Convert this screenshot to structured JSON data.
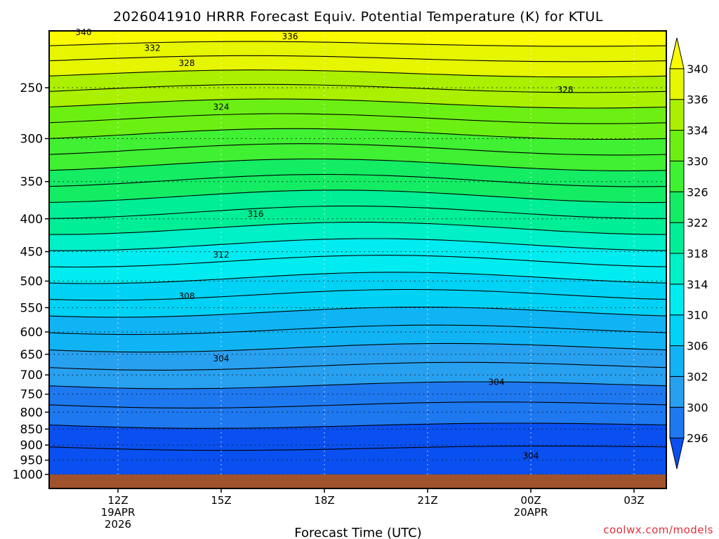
{
  "chart_data": {
    "type": "heatmap",
    "title": "2026041910 HRRR Forecast Equiv. Potential Temperature (K) for KTUL",
    "xlabel": "Forecast Time (UTC)",
    "ylabel": "",
    "credit": "coolwx.com/models",
    "x_ticks": [
      {
        "hour": 12,
        "label": "12Z",
        "sub1": "19APR",
        "sub2": "2026"
      },
      {
        "hour": 15,
        "label": "15Z",
        "sub1": "",
        "sub2": ""
      },
      {
        "hour": 18,
        "label": "18Z",
        "sub1": "",
        "sub2": ""
      },
      {
        "hour": 21,
        "label": "21Z",
        "sub1": "",
        "sub2": ""
      },
      {
        "hour": 24,
        "label": "00Z",
        "sub1": "20APR",
        "sub2": ""
      },
      {
        "hour": 27,
        "label": "03Z",
        "sub1": "",
        "sub2": ""
      }
    ],
    "xlim": [
      10,
      28
    ],
    "y_axis": "pressure (hPa), log scale, inverted",
    "ylim": [
      1000,
      200
    ],
    "y_ticks": [
      250,
      300,
      350,
      400,
      450,
      500,
      550,
      600,
      650,
      700,
      750,
      800,
      850,
      900,
      950,
      1000
    ],
    "grid": "dotted",
    "colorbar": {
      "levels": [
        296,
        300,
        302,
        306,
        310,
        314,
        318,
        322,
        326,
        330,
        334,
        336,
        340
      ],
      "labels": [
        "296",
        "300",
        "302",
        "306",
        "310",
        "314",
        "318",
        "322",
        "326",
        "330",
        "334",
        "336",
        "340"
      ],
      "colors": [
        "#0a50f0",
        "#1e78f0",
        "#28a0f0",
        "#10b4f5",
        "#00d2f5",
        "#00ecf0",
        "#00f0c8",
        "#00ee96",
        "#14ec64",
        "#40f032",
        "#6cf014",
        "#aaf000",
        "#e6f500",
        "#fafa00"
      ],
      "extend": "both"
    },
    "contour_labels": [
      {
        "value": "340",
        "hour": 11.0,
        "p": 205
      },
      {
        "value": "336",
        "hour": 17.0,
        "p": 208
      },
      {
        "value": "332",
        "hour": 13.0,
        "p": 217
      },
      {
        "value": "328",
        "hour": 14.0,
        "p": 229
      },
      {
        "value": "328",
        "hour": 25.0,
        "p": 252
      },
      {
        "value": "324",
        "hour": 15.0,
        "p": 268
      },
      {
        "value": "316",
        "hour": 16.0,
        "p": 393
      },
      {
        "value": "312",
        "hour": 15.0,
        "p": 455
      },
      {
        "value": "308",
        "hour": 14.0,
        "p": 528
      },
      {
        "value": "304",
        "hour": 15.0,
        "p": 660
      },
      {
        "value": "304",
        "hour": 23.0,
        "p": 718
      },
      {
        "value": "304",
        "hour": 24.0,
        "p": 935
      }
    ],
    "ground": {
      "color": "#a0522d",
      "top_p": 1000
    },
    "isotherm_count": 26
  }
}
